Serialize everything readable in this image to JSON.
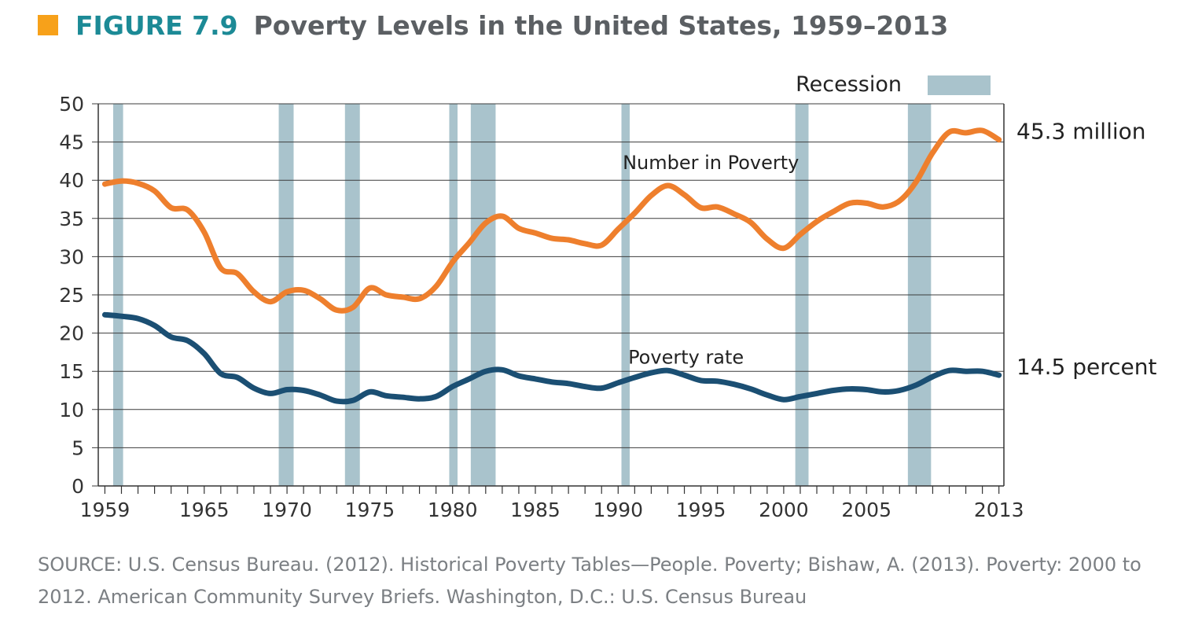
{
  "figure": {
    "label": "FIGURE 7.9",
    "title": "Poverty Levels in the United States, 1959–2013",
    "label_color": "#1c8a96",
    "marker_color": "#f7a11a"
  },
  "source": "SOURCE: U.S. Census Bureau. (2012). Historical Poverty Tables—People. Poverty; Bishaw, A. (2013). Poverty: 2000 to 2012. American Community Survey Briefs. Washington, D.C.: U.S. Census Bureau",
  "chart_data": {
    "type": "line",
    "title": "Poverty Levels in the United States, 1959–2013",
    "xlabel": "",
    "ylabel": "",
    "xlim": [
      1958.6,
      2013.3
    ],
    "ylim": [
      0,
      50
    ],
    "yticks": [
      0,
      5,
      10,
      15,
      20,
      25,
      30,
      35,
      40,
      45,
      50
    ],
    "xtick_labels": [
      1959,
      1965,
      1970,
      1975,
      1980,
      1985,
      1990,
      1995,
      2000,
      2005,
      2013
    ],
    "grid": true,
    "legend": {
      "label": "Recession",
      "color": "#a9c3cc",
      "position": "top-right"
    },
    "recessions": [
      [
        1959.5,
        1960.1
      ],
      [
        1969.5,
        1970.4
      ],
      [
        1973.5,
        1974.4
      ],
      [
        1979.8,
        1980.3
      ],
      [
        1981.1,
        1982.6
      ],
      [
        1990.2,
        1990.7
      ],
      [
        2000.7,
        2001.5
      ],
      [
        2007.5,
        2008.9
      ]
    ],
    "series": [
      {
        "name": "Number in Poverty",
        "color": "#ee7f2d",
        "end_label": "45.3 million",
        "x": [
          1959,
          1960,
          1961,
          1962,
          1963,
          1964,
          1965,
          1966,
          1967,
          1968,
          1969,
          1970,
          1971,
          1972,
          1973,
          1974,
          1975,
          1976,
          1977,
          1978,
          1979,
          1980,
          1981,
          1982,
          1983,
          1984,
          1985,
          1986,
          1987,
          1988,
          1989,
          1990,
          1991,
          1992,
          1993,
          1994,
          1995,
          1996,
          1997,
          1998,
          1999,
          2000,
          2001,
          2002,
          2003,
          2004,
          2005,
          2006,
          2007,
          2008,
          2009,
          2010,
          2011,
          2012,
          2013
        ],
        "y": [
          39.5,
          39.9,
          39.6,
          38.6,
          36.4,
          36.1,
          33.2,
          28.5,
          27.8,
          25.4,
          24.1,
          25.4,
          25.6,
          24.5,
          23.0,
          23.4,
          25.9,
          25.0,
          24.7,
          24.5,
          26.1,
          29.3,
          31.8,
          34.4,
          35.3,
          33.7,
          33.1,
          32.4,
          32.2,
          31.7,
          31.5,
          33.6,
          35.7,
          38.0,
          39.3,
          38.1,
          36.4,
          36.5,
          35.6,
          34.5,
          32.3,
          31.1,
          32.9,
          34.6,
          35.9,
          37.0,
          37.0,
          36.5,
          37.3,
          39.8,
          43.6,
          46.3,
          46.2,
          46.5,
          45.3
        ]
      },
      {
        "name": "Poverty rate",
        "color": "#1b4f73",
        "end_label": "14.5 percent",
        "x": [
          1959,
          1960,
          1961,
          1962,
          1963,
          1964,
          1965,
          1966,
          1967,
          1968,
          1969,
          1970,
          1971,
          1972,
          1973,
          1974,
          1975,
          1976,
          1977,
          1978,
          1979,
          1980,
          1981,
          1982,
          1983,
          1984,
          1985,
          1986,
          1987,
          1988,
          1989,
          1990,
          1991,
          1992,
          1993,
          1994,
          1995,
          1996,
          1997,
          1998,
          1999,
          2000,
          2001,
          2002,
          2003,
          2004,
          2005,
          2006,
          2007,
          2008,
          2009,
          2010,
          2011,
          2012,
          2013
        ],
        "y": [
          22.4,
          22.2,
          21.9,
          21.0,
          19.5,
          19.0,
          17.3,
          14.7,
          14.2,
          12.8,
          12.1,
          12.6,
          12.5,
          11.9,
          11.1,
          11.2,
          12.3,
          11.8,
          11.6,
          11.4,
          11.7,
          13.0,
          14.0,
          15.0,
          15.2,
          14.4,
          14.0,
          13.6,
          13.4,
          13.0,
          12.8,
          13.5,
          14.2,
          14.8,
          15.1,
          14.5,
          13.8,
          13.7,
          13.3,
          12.7,
          11.9,
          11.3,
          11.7,
          12.1,
          12.5,
          12.7,
          12.6,
          12.3,
          12.5,
          13.2,
          14.3,
          15.1,
          15.0,
          15.0,
          14.5
        ]
      }
    ],
    "annotations": [
      {
        "text": "Number in Poverty",
        "x": 1995.6,
        "y": 42.3,
        "anchor": "middle"
      },
      {
        "text": "Poverty rate",
        "x": 1994.1,
        "y": 16.8,
        "anchor": "middle"
      }
    ]
  }
}
